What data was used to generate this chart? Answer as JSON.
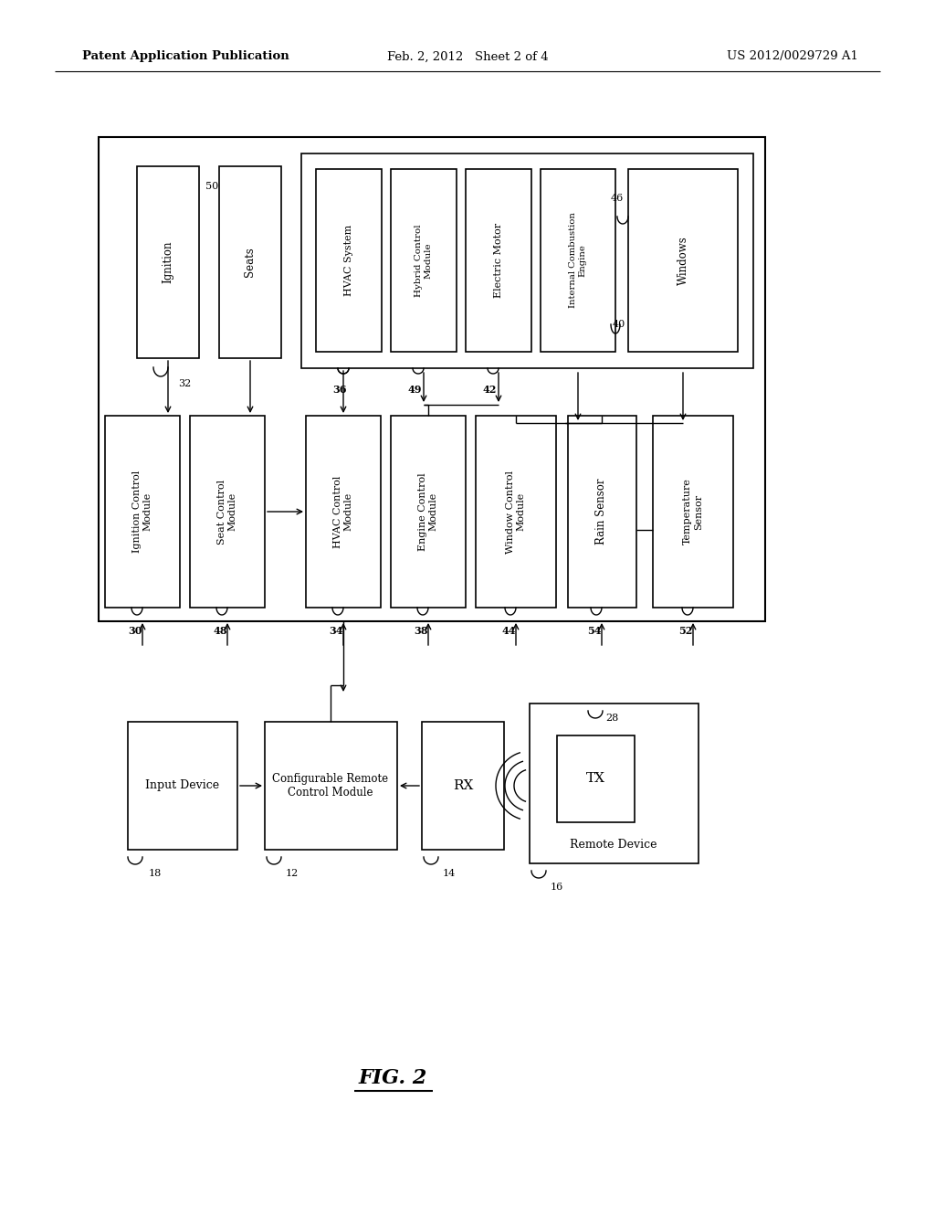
{
  "bg_color": "#ffffff",
  "header_left": "Patent Application Publication",
  "header_center": "Feb. 2, 2012   Sheet 2 of 4",
  "header_right": "US 2012/0029729 A1",
  "figure_label": "FIG. 2"
}
